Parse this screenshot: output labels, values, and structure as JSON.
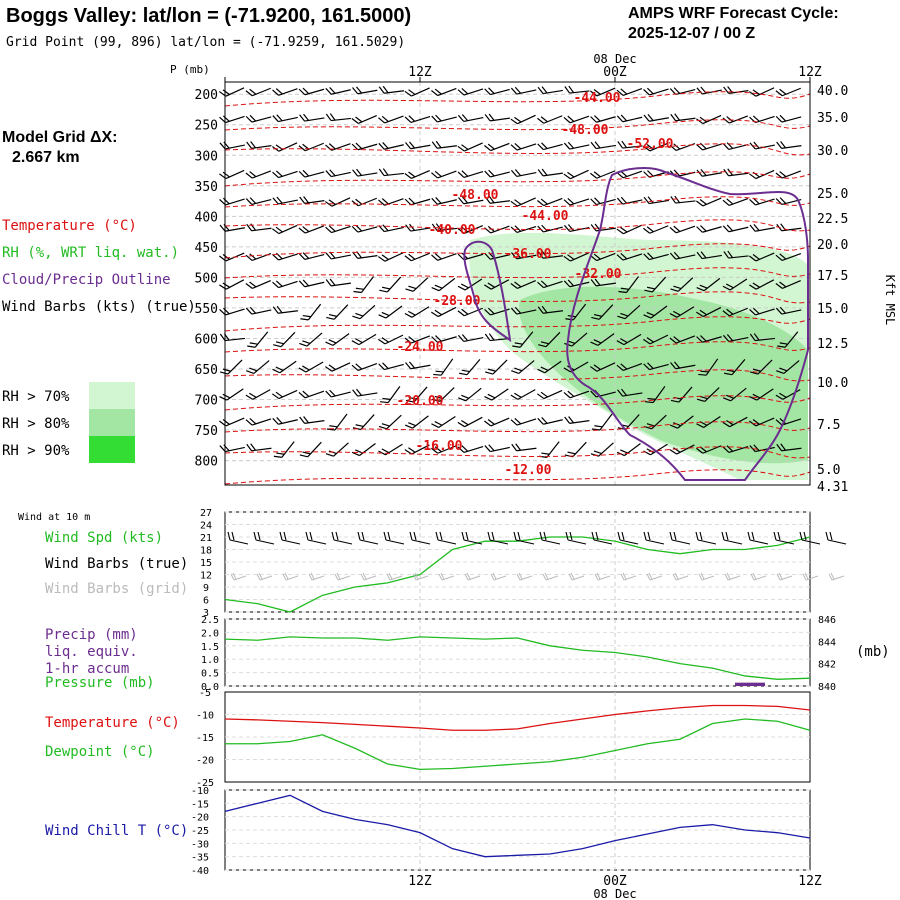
{
  "header": {
    "location_title": "Boggs Valley:  lat/lon = (-71.9200, 161.5000)",
    "grid_point": "Grid Point (99, 896) lat/lon = (-71.9259, 161.5029)",
    "forecast_label": "AMPS WRF Forecast Cycle:",
    "forecast_cycle": "2025-12-07 / 00  Z"
  },
  "legend": {
    "model_grid_label": "Model Grid ΔX:",
    "model_grid_value": "2.667 km",
    "temperature": "Temperature (°C)",
    "rh": "RH (%, WRT liq. wat.)",
    "cloud": "Cloud/Precip Outline",
    "wind_barbs": "Wind Barbs (kts) (true)",
    "rh_levels": [
      "RH > 70%",
      "RH > 80%",
      "RH > 90%"
    ]
  },
  "colors": {
    "temperature": "#dd1111",
    "rh": "#22bb22",
    "cloud": "#6b2d8f",
    "wind_chill": "#1a1aa8",
    "barbs": "#000000",
    "barbs_grid": "#bbbbbb",
    "rh70": "#d2f5d2",
    "rh80": "#a3e6a3",
    "rh90": "#33dd33"
  },
  "chart_data": [
    {
      "type": "contour",
      "name": "cross-section",
      "pressure_axis_label": "P (mb)",
      "pressure_ticks": [
        "200",
        "250",
        "300",
        "350",
        "400",
        "450",
        "500",
        "550",
        "600",
        "650",
        "700",
        "750",
        "800"
      ],
      "height_ticks": [
        "40.0",
        "35.0",
        "30.0",
        "25.0",
        "22.5",
        "20.0",
        "17.5",
        "15.0",
        "12.5",
        "10.0",
        "7.5",
        "5.0",
        "4.31"
      ],
      "height_axis_label": "Kft MSL",
      "time_ticks_top": [
        "12Z",
        "00Z",
        "12Z"
      ],
      "date_label": "08 Dec",
      "temperature_contour_labels": [
        "-44.00",
        "-48.00",
        "-52.00",
        "-48.00",
        "-44.00",
        "-40.00",
        "-36.00",
        "-32.00",
        "-28.00",
        "-24.00",
        "-20.00",
        "-16.00",
        "-12.00"
      ],
      "pressure_range_mb": [
        180,
        840
      ],
      "time_range_h": [
        0,
        36
      ]
    },
    {
      "type": "line",
      "name": "wind-at-10m",
      "title": "Wind at 10 m",
      "labels": [
        "Wind Spd (kts)",
        "Wind Barbs (true)",
        "Wind Barbs (grid)"
      ],
      "y_ticks": [
        "27",
        "24",
        "21",
        "18",
        "15",
        "12",
        "9",
        "6",
        "3"
      ],
      "ylim": [
        3,
        27
      ],
      "x": [
        0,
        2,
        4,
        6,
        8,
        10,
        12,
        14,
        16,
        18,
        20,
        22,
        24,
        26,
        28,
        30,
        32,
        34,
        36
      ],
      "wind_speed_kts": [
        6,
        5,
        3,
        7,
        9,
        10,
        12,
        18,
        20,
        20,
        21,
        21,
        20,
        18,
        17,
        18,
        18,
        19,
        21
      ]
    },
    {
      "type": "line",
      "name": "precip-pressure",
      "labels": [
        "Precip (mm)",
        "liq. equiv.",
        "1-hr accum",
        "Pressure (mb)"
      ],
      "precip_ticks": [
        "2.5",
        "2.0",
        "1.5",
        "1.0",
        "0.5",
        "0.0"
      ],
      "pressure_ticks": [
        "846",
        "844",
        "842",
        "840"
      ],
      "right_unit": "(mb)",
      "x": [
        0,
        2,
        4,
        6,
        8,
        10,
        12,
        14,
        16,
        18,
        20,
        22,
        24,
        26,
        28,
        30,
        32,
        34,
        36
      ],
      "pressure_mb": [
        844.2,
        844.1,
        844.4,
        844.3,
        844.3,
        844.1,
        844.4,
        844.3,
        844.2,
        844.3,
        843.6,
        843.2,
        843.0,
        842.6,
        842.0,
        841.6,
        840.9,
        840.6,
        840.7
      ],
      "precip_mm": [
        0,
        0,
        0,
        0,
        0,
        0,
        0,
        0,
        0,
        0,
        0,
        0,
        0,
        0,
        0,
        0,
        0.05,
        0,
        0
      ]
    },
    {
      "type": "line",
      "name": "temperature-dewpoint",
      "labels": [
        "Temperature (°C)",
        "Dewpoint (°C)"
      ],
      "y_ticks": [
        "-5",
        "-10",
        "-15",
        "-20",
        "-25"
      ],
      "ylim": [
        -25,
        -5
      ],
      "x": [
        0,
        2,
        4,
        6,
        8,
        10,
        12,
        14,
        16,
        18,
        20,
        22,
        24,
        26,
        28,
        30,
        32,
        34,
        36
      ],
      "temperature_c": [
        -11,
        -11.2,
        -11.5,
        -11.8,
        -12.2,
        -12.6,
        -13,
        -13.5,
        -13.5,
        -13.2,
        -12,
        -11,
        -10,
        -9.2,
        -8.5,
        -8,
        -8,
        -8.2,
        -9
      ],
      "dewpoint_c": [
        -16.5,
        -16.5,
        -16,
        -14.5,
        -17.5,
        -21,
        -22.2,
        -22,
        -21.5,
        -21,
        -20.5,
        -19.5,
        -18,
        -16.5,
        -15.5,
        -12,
        -11,
        -11.5,
        -13.5
      ]
    },
    {
      "type": "line",
      "name": "wind-chill",
      "labels": [
        "Wind Chill T (°C)"
      ],
      "y_ticks": [
        "-10",
        "-15",
        "-20",
        "-25",
        "-30",
        "-35",
        "-40"
      ],
      "ylim": [
        -40,
        -10
      ],
      "x": [
        0,
        2,
        4,
        6,
        8,
        10,
        12,
        14,
        16,
        18,
        20,
        22,
        24,
        26,
        28,
        30,
        32,
        34,
        36
      ],
      "wind_chill_c": [
        -18,
        -15,
        -12,
        -18,
        -21,
        -23,
        -26,
        -32,
        -35,
        -34.5,
        -34,
        -32,
        -29,
        -26.5,
        -24,
        -23,
        -25,
        -26,
        -28
      ]
    }
  ],
  "bottom_axis": {
    "time_ticks": [
      "12Z",
      "00Z",
      "12Z"
    ],
    "date_label": "08 Dec"
  }
}
